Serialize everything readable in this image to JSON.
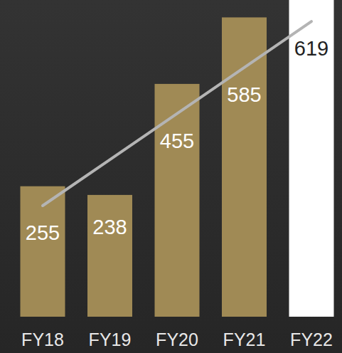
{
  "chart_data": {
    "type": "bar",
    "categories": [
      "FY18",
      "FY19",
      "FY20",
      "FY21",
      "FY22"
    ],
    "series": [
      {
        "type": "bar",
        "values": [
          255,
          238,
          455,
          585,
          619
        ],
        "colors": [
          "#a08a55",
          "#a08a55",
          "#a08a55",
          "#a08a55",
          "#ffffff"
        ]
      },
      {
        "type": "line",
        "values": [
          217,
          307,
          397,
          487,
          577
        ],
        "color": "#b4b4b4"
      }
    ],
    "ylim": [
      0,
      619
    ],
    "data_labels": true,
    "tick_labels": "x",
    "grid": false
  }
}
